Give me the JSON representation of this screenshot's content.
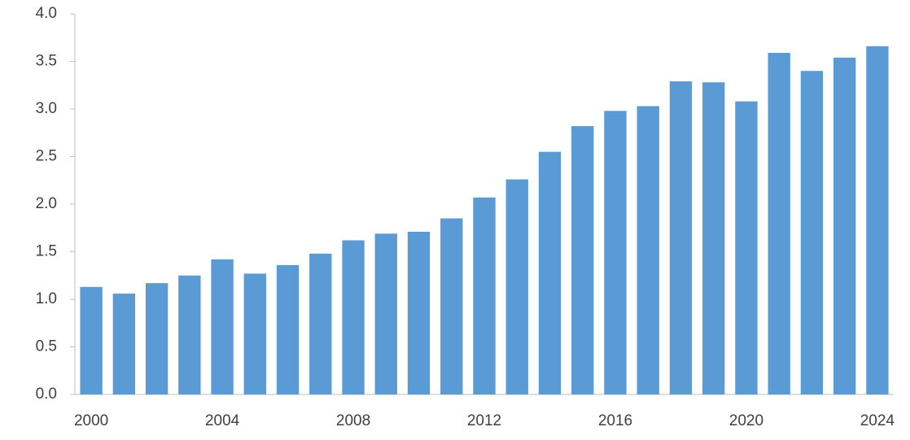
{
  "chart_data": {
    "type": "bar",
    "categories": [
      "2000",
      null,
      null,
      null,
      "2004",
      null,
      null,
      null,
      "2008",
      null,
      null,
      null,
      "2012",
      null,
      null,
      null,
      "2016",
      null,
      null,
      null,
      "2020",
      null,
      null,
      null,
      "2024"
    ],
    "values": [
      1.13,
      1.06,
      1.17,
      1.25,
      1.42,
      1.27,
      1.36,
      1.48,
      1.62,
      1.69,
      1.71,
      1.85,
      2.07,
      2.26,
      2.55,
      2.82,
      2.98,
      3.03,
      3.29,
      3.28,
      3.08,
      3.59,
      3.4,
      3.54,
      3.66
    ],
    "color": "#5b9bd5",
    "ylim": [
      0,
      4
    ],
    "yticks": [
      {
        "value": 0,
        "label": "0.0"
      },
      0.5,
      {
        "value": 1,
        "label": "1.0"
      },
      1.5,
      {
        "value": 2,
        "label": "2.0"
      },
      2.5,
      {
        "value": 3,
        "label": "3.0"
      },
      3.5,
      {
        "value": 4,
        "label": "4.0"
      }
    ],
    "grid": false
  }
}
